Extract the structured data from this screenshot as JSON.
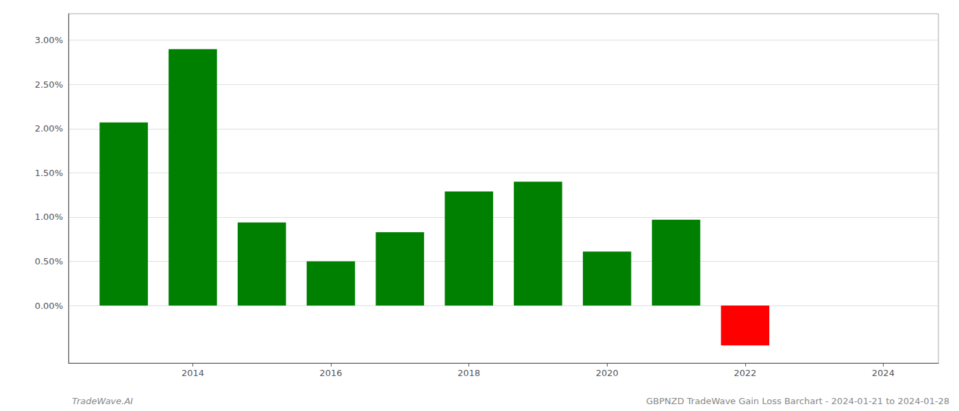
{
  "chart_data": {
    "type": "bar",
    "x": [
      2013,
      2014,
      2015,
      2016,
      2017,
      2018,
      2019,
      2020,
      2021,
      2022,
      2023
    ],
    "values": [
      0.0207,
      0.029,
      0.0094,
      0.005,
      0.0083,
      0.0129,
      0.014,
      0.0061,
      0.0097,
      -0.0045,
      0.0
    ],
    "colors": [
      "#008000",
      "#008000",
      "#008000",
      "#008000",
      "#008000",
      "#008000",
      "#008000",
      "#008000",
      "#008000",
      "#ff0000",
      "#ff0000"
    ],
    "xlim": [
      2012.2,
      2024.8
    ],
    "xticks": [
      2014,
      2016,
      2018,
      2020,
      2022,
      2024
    ],
    "ylim": [
      -0.0065,
      0.033
    ],
    "yticks": [
      {
        "value": 0.0,
        "label": "0.00%"
      },
      {
        "value": 0.005,
        "label": "0.50%"
      },
      {
        "value": 0.01,
        "label": "1.00%"
      },
      {
        "value": 0.015,
        "label": "1.50%"
      },
      {
        "value": 0.02,
        "label": "2.00%"
      },
      {
        "value": 0.025,
        "label": "2.50%"
      },
      {
        "value": 0.03,
        "label": "3.00%"
      }
    ],
    "grid": true,
    "annotations": [
      "TradeWave.AI",
      "GBPNZD TradeWave Gain Loss Barchart - 2024-01-21 to 2024-01-28"
    ]
  }
}
